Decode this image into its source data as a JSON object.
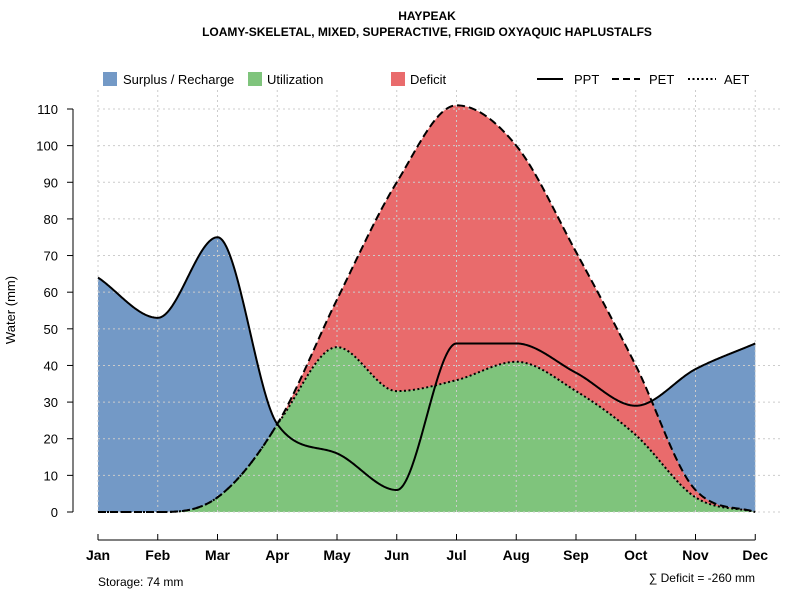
{
  "chart_data": {
    "type": "area",
    "title": "HAYPEAK",
    "subtitle": "LOAMY-SKELETAL, MIXED, SUPERACTIVE, FRIGID OXYAQUIC HAPLUSTALFS",
    "xlabel": "",
    "ylabel": "Water (mm)",
    "ylim": [
      0,
      110
    ],
    "yticks": [
      0,
      10,
      20,
      30,
      40,
      50,
      60,
      70,
      80,
      90,
      100,
      110
    ],
    "grid": true,
    "legend_position": "top",
    "categories": [
      "Jan",
      "Feb",
      "Mar",
      "Apr",
      "May",
      "Jun",
      "Jul",
      "Aug",
      "Sep",
      "Oct",
      "Nov",
      "Dec"
    ],
    "series": [
      {
        "name": "PPT",
        "line_style": "solid",
        "values": [
          64,
          53,
          75,
          24,
          16,
          6,
          46,
          46,
          38,
          29,
          39,
          46
        ]
      },
      {
        "name": "PET",
        "line_style": "dashed",
        "values": [
          0,
          0,
          4,
          24,
          58,
          90,
          111,
          100,
          71,
          40,
          6,
          0
        ]
      },
      {
        "name": "AET",
        "line_style": "dotted",
        "values": [
          0,
          0,
          4,
          24,
          45,
          33,
          36,
          41,
          33,
          21,
          4,
          0
        ]
      }
    ],
    "fill_legend": [
      {
        "label": "Surplus / Recharge",
        "color": "#7399c6"
      },
      {
        "label": "Utilization",
        "color": "#7fc47c"
      },
      {
        "label": "Deficit",
        "color": "#e96b6c"
      }
    ],
    "annotations": {
      "storage": "Storage: 74 mm",
      "deficit": "∑ Deficit = -260 mm"
    }
  }
}
